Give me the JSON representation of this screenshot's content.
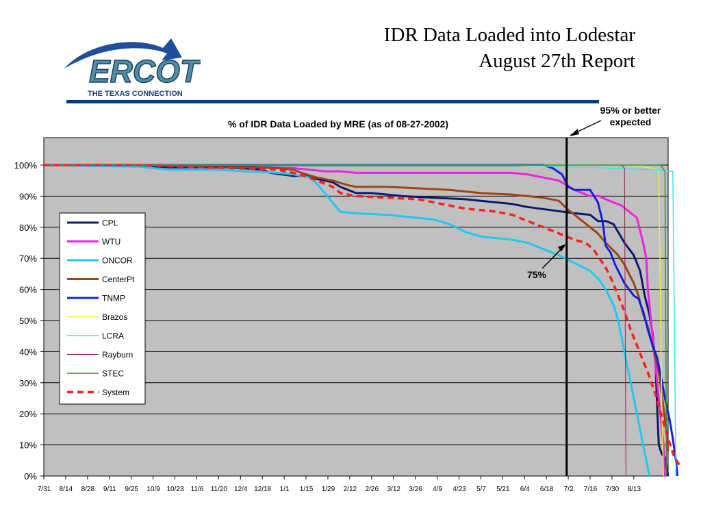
{
  "slide": {
    "title_line1": "IDR Data Loaded into Lodestar",
    "title_line2": "August 27th Report"
  },
  "logo": {
    "text": "ERCOT",
    "tagline": "THE TEXAS CONNECTION"
  },
  "chart_data": {
    "type": "line",
    "title": "% of IDR Data Loaded by MRE (as of 08-27-2002)",
    "xlabel": "",
    "ylabel": "",
    "x_tick_labels": [
      "7/31",
      "8/14",
      "8/28",
      "9/11",
      "9/25",
      "10/9",
      "10/23",
      "11/6",
      "11/20",
      "12/4",
      "12/18",
      "1/1",
      "1/15",
      "1/29",
      "2/12",
      "2/26",
      "3/12",
      "3/26",
      "4/9",
      "4/23",
      "5/7",
      "5/21",
      "6/4",
      "6/18",
      "7/2",
      "7/16",
      "7/30",
      "8/13"
    ],
    "y_tick_labels": [
      "0%",
      "10%",
      "20%",
      "30%",
      "40%",
      "50%",
      "60%",
      "70%",
      "80%",
      "90%",
      "100%"
    ],
    "ylim": [
      0,
      110
    ],
    "x_range_days": [
      0,
      400
    ],
    "grid": true,
    "legend": "left",
    "background": "#c0c0c0",
    "series": [
      {
        "name": "CPL",
        "color": "#0b1a6e",
        "width": 3,
        "dash": "",
        "points": [
          [
            0,
            100
          ],
          [
            60,
            100
          ],
          [
            80,
            99.3
          ],
          [
            120,
            99.3
          ],
          [
            140,
            98.5
          ],
          [
            145,
            97.5
          ],
          [
            160,
            96.5
          ],
          [
            168,
            96.5
          ],
          [
            175,
            95.5
          ],
          [
            185,
            94.5
          ],
          [
            190,
            93
          ],
          [
            195,
            92
          ],
          [
            200,
            91
          ],
          [
            210,
            91
          ],
          [
            220,
            90.5
          ],
          [
            230,
            90
          ],
          [
            250,
            89.5
          ],
          [
            270,
            89
          ],
          [
            280,
            88.5
          ],
          [
            300,
            87.5
          ],
          [
            310,
            86.5
          ],
          [
            325,
            85.5
          ],
          [
            340,
            84.5
          ],
          [
            350,
            84
          ],
          [
            355,
            82
          ],
          [
            360,
            82
          ],
          [
            365,
            81
          ],
          [
            372,
            75
          ],
          [
            378,
            71
          ],
          [
            382,
            66
          ],
          [
            385,
            58
          ],
          [
            388,
            52
          ],
          [
            390,
            46
          ],
          [
            392,
            35
          ],
          [
            393,
            22
          ],
          [
            394,
            10
          ],
          [
            396,
            7
          ],
          [
            398,
            6
          ],
          [
            400,
            0
          ]
        ]
      },
      {
        "name": "WTU",
        "color": "#ee22dd",
        "width": 3,
        "dash": "",
        "points": [
          [
            0,
            100
          ],
          [
            70,
            100
          ],
          [
            120,
            99.5
          ],
          [
            160,
            99
          ],
          [
            170,
            98.5
          ],
          [
            180,
            98
          ],
          [
            190,
            98
          ],
          [
            200,
            97.5
          ],
          [
            300,
            97.5
          ],
          [
            310,
            97
          ],
          [
            320,
            96
          ],
          [
            330,
            95
          ],
          [
            340,
            92
          ],
          [
            350,
            90
          ],
          [
            356,
            90
          ],
          [
            360,
            89
          ],
          [
            370,
            87
          ],
          [
            375,
            85
          ],
          [
            380,
            83
          ],
          [
            384,
            75
          ],
          [
            386,
            70
          ],
          [
            387,
            60
          ],
          [
            389,
            50
          ],
          [
            391,
            40
          ],
          [
            393,
            30
          ],
          [
            395,
            20
          ],
          [
            397,
            10
          ],
          [
            398,
            0
          ]
        ]
      },
      {
        "name": "ONCOR",
        "color": "#1ec8f0",
        "width": 3,
        "dash": "",
        "points": [
          [
            0,
            100
          ],
          [
            60,
            99.5
          ],
          [
            80,
            98.5
          ],
          [
            110,
            98.5
          ],
          [
            130,
            98
          ],
          [
            150,
            97.5
          ],
          [
            160,
            97
          ],
          [
            170,
            96
          ],
          [
            175,
            94
          ],
          [
            180,
            91
          ],
          [
            185,
            88
          ],
          [
            190,
            85
          ],
          [
            200,
            84.5
          ],
          [
            220,
            84
          ],
          [
            240,
            83
          ],
          [
            250,
            82.5
          ],
          [
            260,
            81
          ],
          [
            270,
            78.5
          ],
          [
            280,
            77
          ],
          [
            300,
            76
          ],
          [
            310,
            75
          ],
          [
            320,
            73
          ],
          [
            330,
            71
          ],
          [
            340,
            68.5
          ],
          [
            350,
            66
          ],
          [
            356,
            63
          ],
          [
            360,
            60
          ],
          [
            365,
            55
          ],
          [
            368,
            50
          ],
          [
            372,
            40
          ],
          [
            376,
            30
          ],
          [
            380,
            20
          ],
          [
            384,
            10
          ],
          [
            386,
            5
          ],
          [
            388,
            0
          ]
        ]
      },
      {
        "name": "CenterPt",
        "color": "#9c4414",
        "width": 3,
        "dash": "",
        "points": [
          [
            0,
            100
          ],
          [
            60,
            100
          ],
          [
            90,
            99.6
          ],
          [
            120,
            99.5
          ],
          [
            150,
            99
          ],
          [
            160,
            98.5
          ],
          [
            165,
            97.5
          ],
          [
            175,
            96
          ],
          [
            185,
            95
          ],
          [
            195,
            93.5
          ],
          [
            200,
            93
          ],
          [
            220,
            93
          ],
          [
            240,
            92.5
          ],
          [
            260,
            92
          ],
          [
            270,
            91.5
          ],
          [
            280,
            91
          ],
          [
            300,
            90.5
          ],
          [
            320,
            89.5
          ],
          [
            330,
            88.5
          ],
          [
            335,
            86
          ],
          [
            340,
            84
          ],
          [
            345,
            82
          ],
          [
            350,
            80
          ],
          [
            355,
            78
          ],
          [
            360,
            75
          ],
          [
            364,
            73
          ],
          [
            368,
            71
          ],
          [
            372,
            68
          ],
          [
            375,
            65
          ],
          [
            378,
            62
          ],
          [
            381,
            58
          ],
          [
            384,
            52
          ],
          [
            387,
            48
          ],
          [
            390,
            42
          ],
          [
            393,
            36
          ],
          [
            395,
            30
          ],
          [
            397,
            22
          ],
          [
            399,
            14
          ],
          [
            400,
            8
          ]
        ]
      },
      {
        "name": "TNMP",
        "color": "#1020e0",
        "width": 3,
        "dash": "",
        "points": [
          [
            0,
            100
          ],
          [
            180,
            100
          ],
          [
            280,
            100
          ],
          [
            320,
            100
          ],
          [
            326,
            99
          ],
          [
            332,
            97
          ],
          [
            336,
            93
          ],
          [
            340,
            92
          ],
          [
            350,
            92
          ],
          [
            355,
            88
          ],
          [
            358,
            82
          ],
          [
            360,
            74
          ],
          [
            363,
            72
          ],
          [
            366,
            68
          ],
          [
            369,
            65
          ],
          [
            372,
            62
          ],
          [
            375,
            60
          ],
          [
            378,
            58
          ],
          [
            381,
            57
          ],
          [
            384,
            53
          ],
          [
            387,
            47
          ],
          [
            390,
            42
          ],
          [
            393,
            38
          ],
          [
            395,
            33
          ],
          [
            398,
            25
          ],
          [
            401,
            18
          ],
          [
            403,
            12
          ],
          [
            405,
            5
          ],
          [
            406,
            0
          ]
        ]
      },
      {
        "name": "Brazos",
        "color": "#eeee33",
        "width": 1.5,
        "dash": "",
        "points": [
          [
            0,
            100
          ],
          [
            375,
            100
          ],
          [
            390,
            99
          ],
          [
            394,
            98
          ],
          [
            395,
            60
          ],
          [
            396,
            20
          ],
          [
            397,
            0
          ]
        ]
      },
      {
        "name": "LCRA",
        "color": "#33e8f0",
        "width": 1.5,
        "dash": "",
        "points": [
          [
            0,
            100
          ],
          [
            300,
            100
          ],
          [
            330,
            99.5
          ],
          [
            360,
            99
          ],
          [
            390,
            98.5
          ],
          [
            400,
            98
          ],
          [
            403,
            98
          ],
          [
            404,
            50
          ],
          [
            405,
            0
          ]
        ]
      },
      {
        "name": "Rayburn",
        "color": "#8b2252",
        "width": 1,
        "dash": "",
        "points": [
          [
            0,
            100
          ],
          [
            370,
            100
          ],
          [
            372,
            99
          ],
          [
            373,
            0
          ]
        ]
      },
      {
        "name": "STEC",
        "color": "#2e8b3e",
        "width": 1.5,
        "dash": "",
        "points": [
          [
            0,
            100
          ],
          [
            395,
            100
          ],
          [
            398,
            98
          ],
          [
            399,
            0
          ]
        ]
      },
      {
        "name": "System",
        "color": "#ff1f1f",
        "width": 3.5,
        "dash": "9,6",
        "points": [
          [
            0,
            100
          ],
          [
            60,
            100
          ],
          [
            90,
            99.5
          ],
          [
            120,
            99
          ],
          [
            150,
            98.5
          ],
          [
            160,
            97.5
          ],
          [
            170,
            96
          ],
          [
            180,
            94
          ],
          [
            185,
            93
          ],
          [
            190,
            91
          ],
          [
            200,
            90
          ],
          [
            220,
            89.5
          ],
          [
            240,
            89
          ],
          [
            250,
            88
          ],
          [
            260,
            87
          ],
          [
            270,
            86
          ],
          [
            280,
            85.5
          ],
          [
            290,
            85
          ],
          [
            300,
            84
          ],
          [
            310,
            82
          ],
          [
            320,
            80
          ],
          [
            330,
            78
          ],
          [
            340,
            76
          ],
          [
            347,
            75
          ],
          [
            352,
            73
          ],
          [
            356,
            70
          ],
          [
            360,
            67
          ],
          [
            364,
            63
          ],
          [
            368,
            58
          ],
          [
            372,
            53
          ],
          [
            376,
            47
          ],
          [
            380,
            42
          ],
          [
            384,
            37
          ],
          [
            388,
            32
          ],
          [
            392,
            26
          ],
          [
            396,
            19
          ],
          [
            400,
            12
          ],
          [
            404,
            6
          ],
          [
            408,
            3
          ]
        ]
      }
    ],
    "annotations": [
      {
        "label": "95% or better\nexpected",
        "x_day": 335,
        "y_value": 110
      },
      {
        "label": "75%",
        "x_day": 335,
        "y_value": 75
      }
    ],
    "vline_day": 335
  }
}
